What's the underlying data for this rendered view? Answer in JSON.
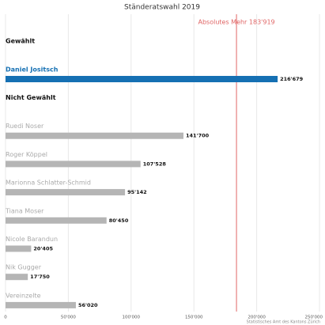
{
  "chart_data": {
    "type": "bar",
    "orientation": "horizontal",
    "title": "Ständeratswahl 2019",
    "groups": [
      {
        "name": "Gewählt",
        "color": "#1570b3",
        "label_color": "#1570b3",
        "categories": [
          "Daniel Jositsch"
        ],
        "values": [
          216679
        ],
        "value_labels": [
          "216'679"
        ]
      },
      {
        "name": "Nicht Gewählt",
        "color": "#b5b5b5",
        "label_color": "#aaaaaa",
        "categories": [
          "Ruedi Noser",
          "Roger Köppel",
          "Marionna Schlatter-Schmid",
          "Tiana Moser",
          "Nicole Barandun",
          "Nik Gugger",
          "Vereinzelte"
        ],
        "values": [
          141700,
          107528,
          95142,
          80450,
          20405,
          17750,
          56020
        ],
        "value_labels": [
          "141'700",
          "107'528",
          "95'142",
          "80'450",
          "20'405",
          "17'750",
          "56'020"
        ]
      }
    ],
    "reference_line": {
      "value": 183919,
      "label": "Absolutes Mehr 183'919",
      "color": "#e06666"
    },
    "xlim": [
      0,
      250000
    ],
    "xticks": [
      0,
      {
        "value": 50000,
        "label": "50'000"
      },
      {
        "value": 100000,
        "label": "100'000"
      },
      {
        "value": 150000,
        "label": "150'000"
      },
      {
        "value": 200000,
        "label": "200'000"
      },
      {
        "value": 250000,
        "label": "250'000"
      }
    ],
    "grid": true,
    "source": "Statistisches Amt des Kantons Zürich"
  }
}
